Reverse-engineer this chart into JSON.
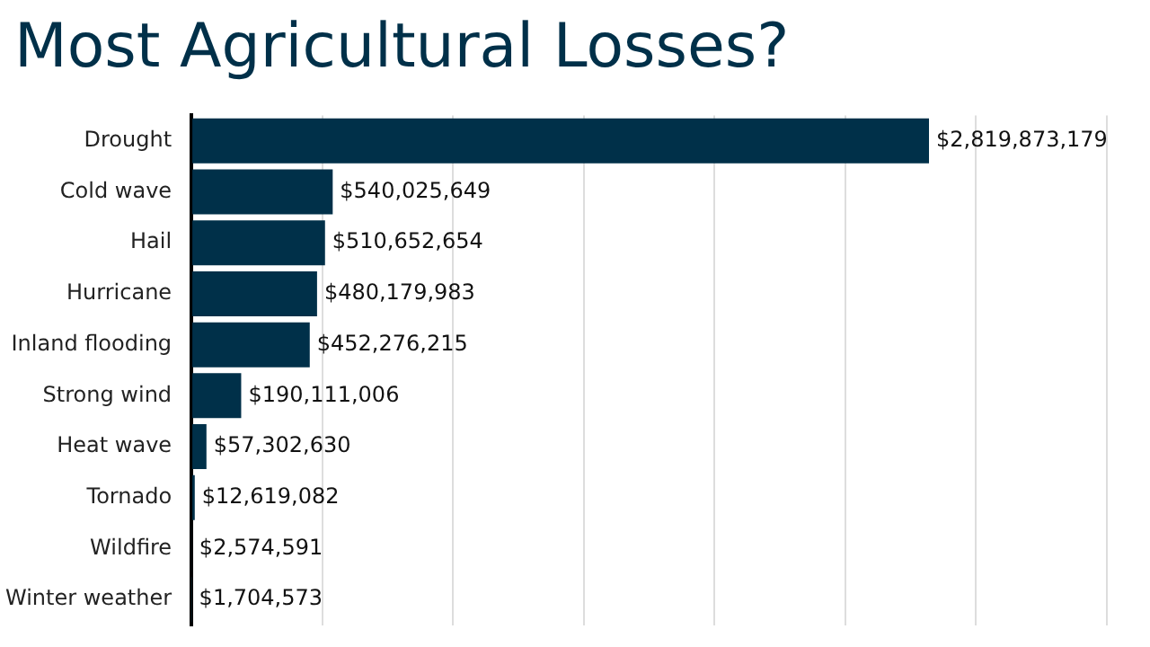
{
  "chart_data": {
    "type": "bar",
    "orientation": "horizontal",
    "title": "Most Agricultural Losses?",
    "categories": [
      "Drought",
      "Cold wave",
      "Hail",
      "Hurricane",
      "Inland flooding",
      "Strong wind",
      "Heat wave",
      "Tornado",
      "Wildfire",
      "Winter weather"
    ],
    "values": [
      2819873179,
      540025649,
      510652654,
      480179983,
      452276215,
      190111006,
      57302630,
      12619082,
      2574591,
      1704573
    ],
    "value_labels": [
      "$2,819,873,179",
      "$540,025,649",
      "$510,652,654",
      "$480,179,983",
      "$452,276,215",
      "$190,111,006",
      "$57,302,630",
      "$12,619,082",
      "$2,574,591",
      "$1,704,573"
    ],
    "color": "#003049",
    "xlim": [
      0,
      3500000000
    ],
    "xticks": [
      {
        "value": 0,
        "label": null
      },
      {
        "value": 500000000,
        "label": null
      },
      {
        "value": 1000000000,
        "label": null
      },
      {
        "value": 1500000000,
        "label": null
      },
      {
        "value": 2000000000,
        "label": null
      },
      {
        "value": 2500000000,
        "label": null
      },
      {
        "value": 3000000000,
        "label": null
      },
      {
        "value": 3500000000,
        "label": null
      }
    ],
    "grid": "x",
    "legend": false,
    "tick_labels": "y"
  }
}
